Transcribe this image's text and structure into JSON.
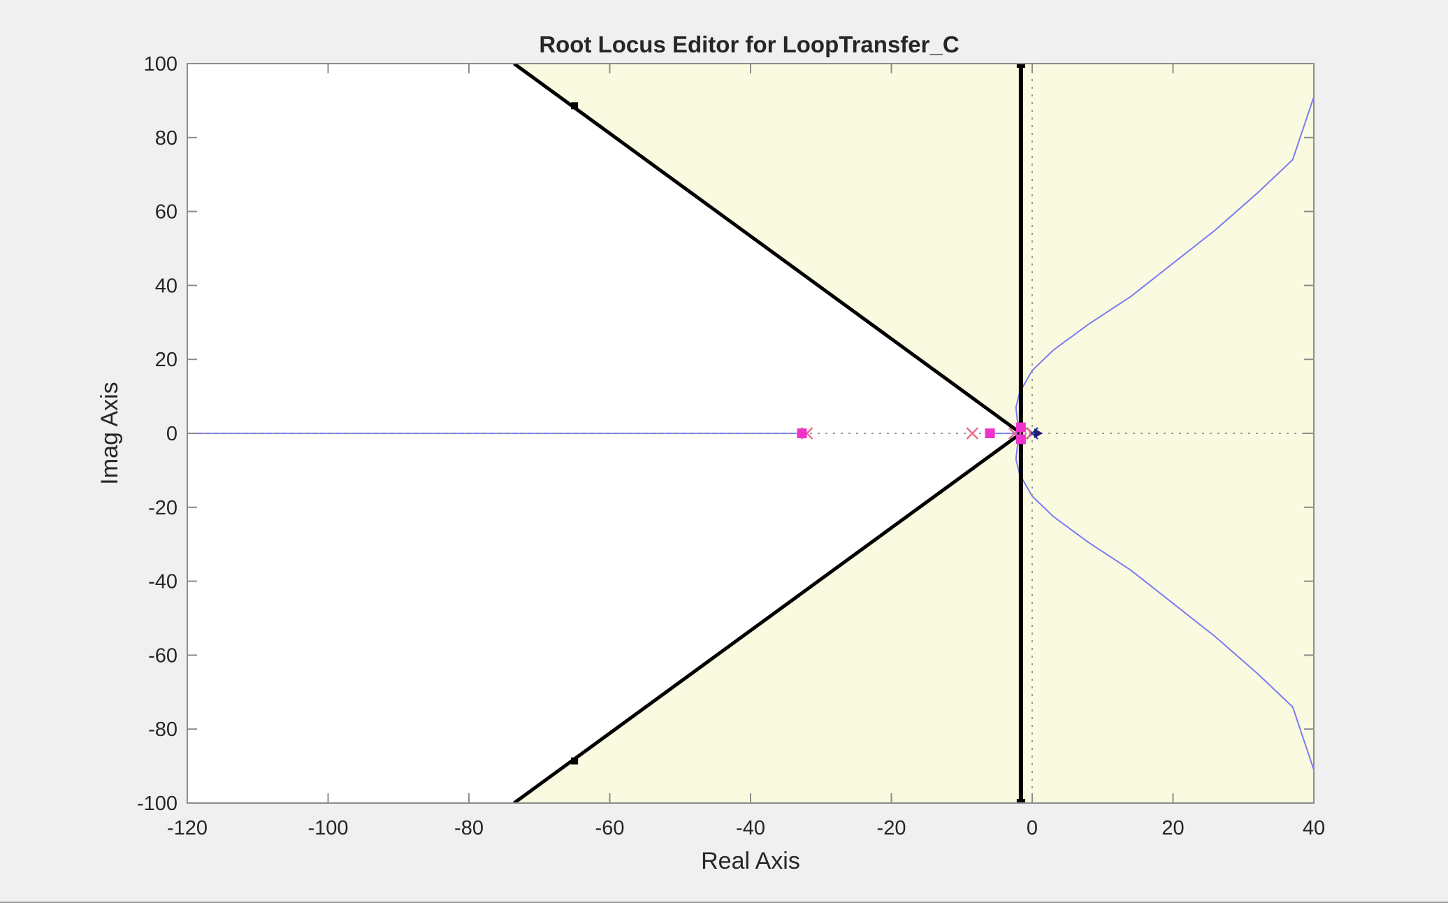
{
  "chart_data": {
    "type": "scatter",
    "title": "Root Locus Editor for LoopTransfer_C",
    "xlabel": "Real Axis",
    "ylabel": "Imag Axis",
    "xlim": [
      -120,
      40
    ],
    "ylim": [
      -100,
      100
    ],
    "xticks": [
      -120,
      -100,
      -80,
      -60,
      -40,
      -20,
      0,
      20,
      40
    ],
    "yticks": [
      100,
      80,
      60,
      40,
      20,
      0,
      -20,
      -40,
      -60,
      -80,
      -100
    ],
    "grid": false,
    "colors": {
      "background": "#ffffff",
      "design_region": "#fafae0",
      "locus": "#7b7bf2",
      "constraint": "#000000",
      "closed_loop_pole": "#ee33cc",
      "open_loop_pole": "#e86f8a",
      "axes": "#8c8c8c"
    },
    "design_regions": [
      {
        "type": "settling_time",
        "boundary_x": -1.6
      },
      {
        "type": "damping_ratio",
        "vertex": [
          -1.6,
          0
        ],
        "slope": 1.389,
        "markers": [
          [
            -65,
            88.6
          ],
          [
            -65,
            -88.6
          ]
        ]
      }
    ],
    "locus_branches": [
      {
        "points": [
          [
            -120,
            0
          ],
          [
            -33,
            0
          ]
        ]
      },
      {
        "points": [
          [
            -5.5,
            0
          ],
          [
            -2,
            0
          ]
        ]
      },
      {
        "points": [
          [
            -1.5,
            0
          ],
          [
            -2.1,
            3.5
          ],
          [
            -2.3,
            7
          ],
          [
            -1.8,
            11
          ],
          [
            0,
            17
          ],
          [
            3,
            22.5
          ],
          [
            8,
            29.5
          ],
          [
            14,
            37
          ],
          [
            20,
            46
          ],
          [
            26,
            55
          ],
          [
            32,
            65
          ],
          [
            37,
            74
          ],
          [
            40,
            91
          ]
        ]
      },
      {
        "points": [
          [
            -1.5,
            0
          ],
          [
            -2.1,
            -3.5
          ],
          [
            -2.3,
            -7
          ],
          [
            -1.8,
            -11
          ],
          [
            0,
            -17
          ],
          [
            3,
            -22.5
          ],
          [
            8,
            -29.5
          ],
          [
            14,
            -37
          ],
          [
            20,
            -46
          ],
          [
            26,
            -55
          ],
          [
            32,
            -65
          ],
          [
            37,
            -74
          ],
          [
            40,
            -91
          ]
        ]
      }
    ],
    "open_loop_poles": [
      [
        -32,
        0
      ],
      [
        -8.5,
        0
      ],
      [
        -2.5,
        0
      ],
      [
        0,
        0
      ]
    ],
    "open_loop_zeros": [
      [
        -1,
        0
      ]
    ],
    "closed_loop_poles": [
      [
        -32.7,
        0
      ],
      [
        -6,
        0
      ],
      [
        -1.6,
        1.6
      ],
      [
        -1.6,
        -1.6
      ]
    ]
  }
}
